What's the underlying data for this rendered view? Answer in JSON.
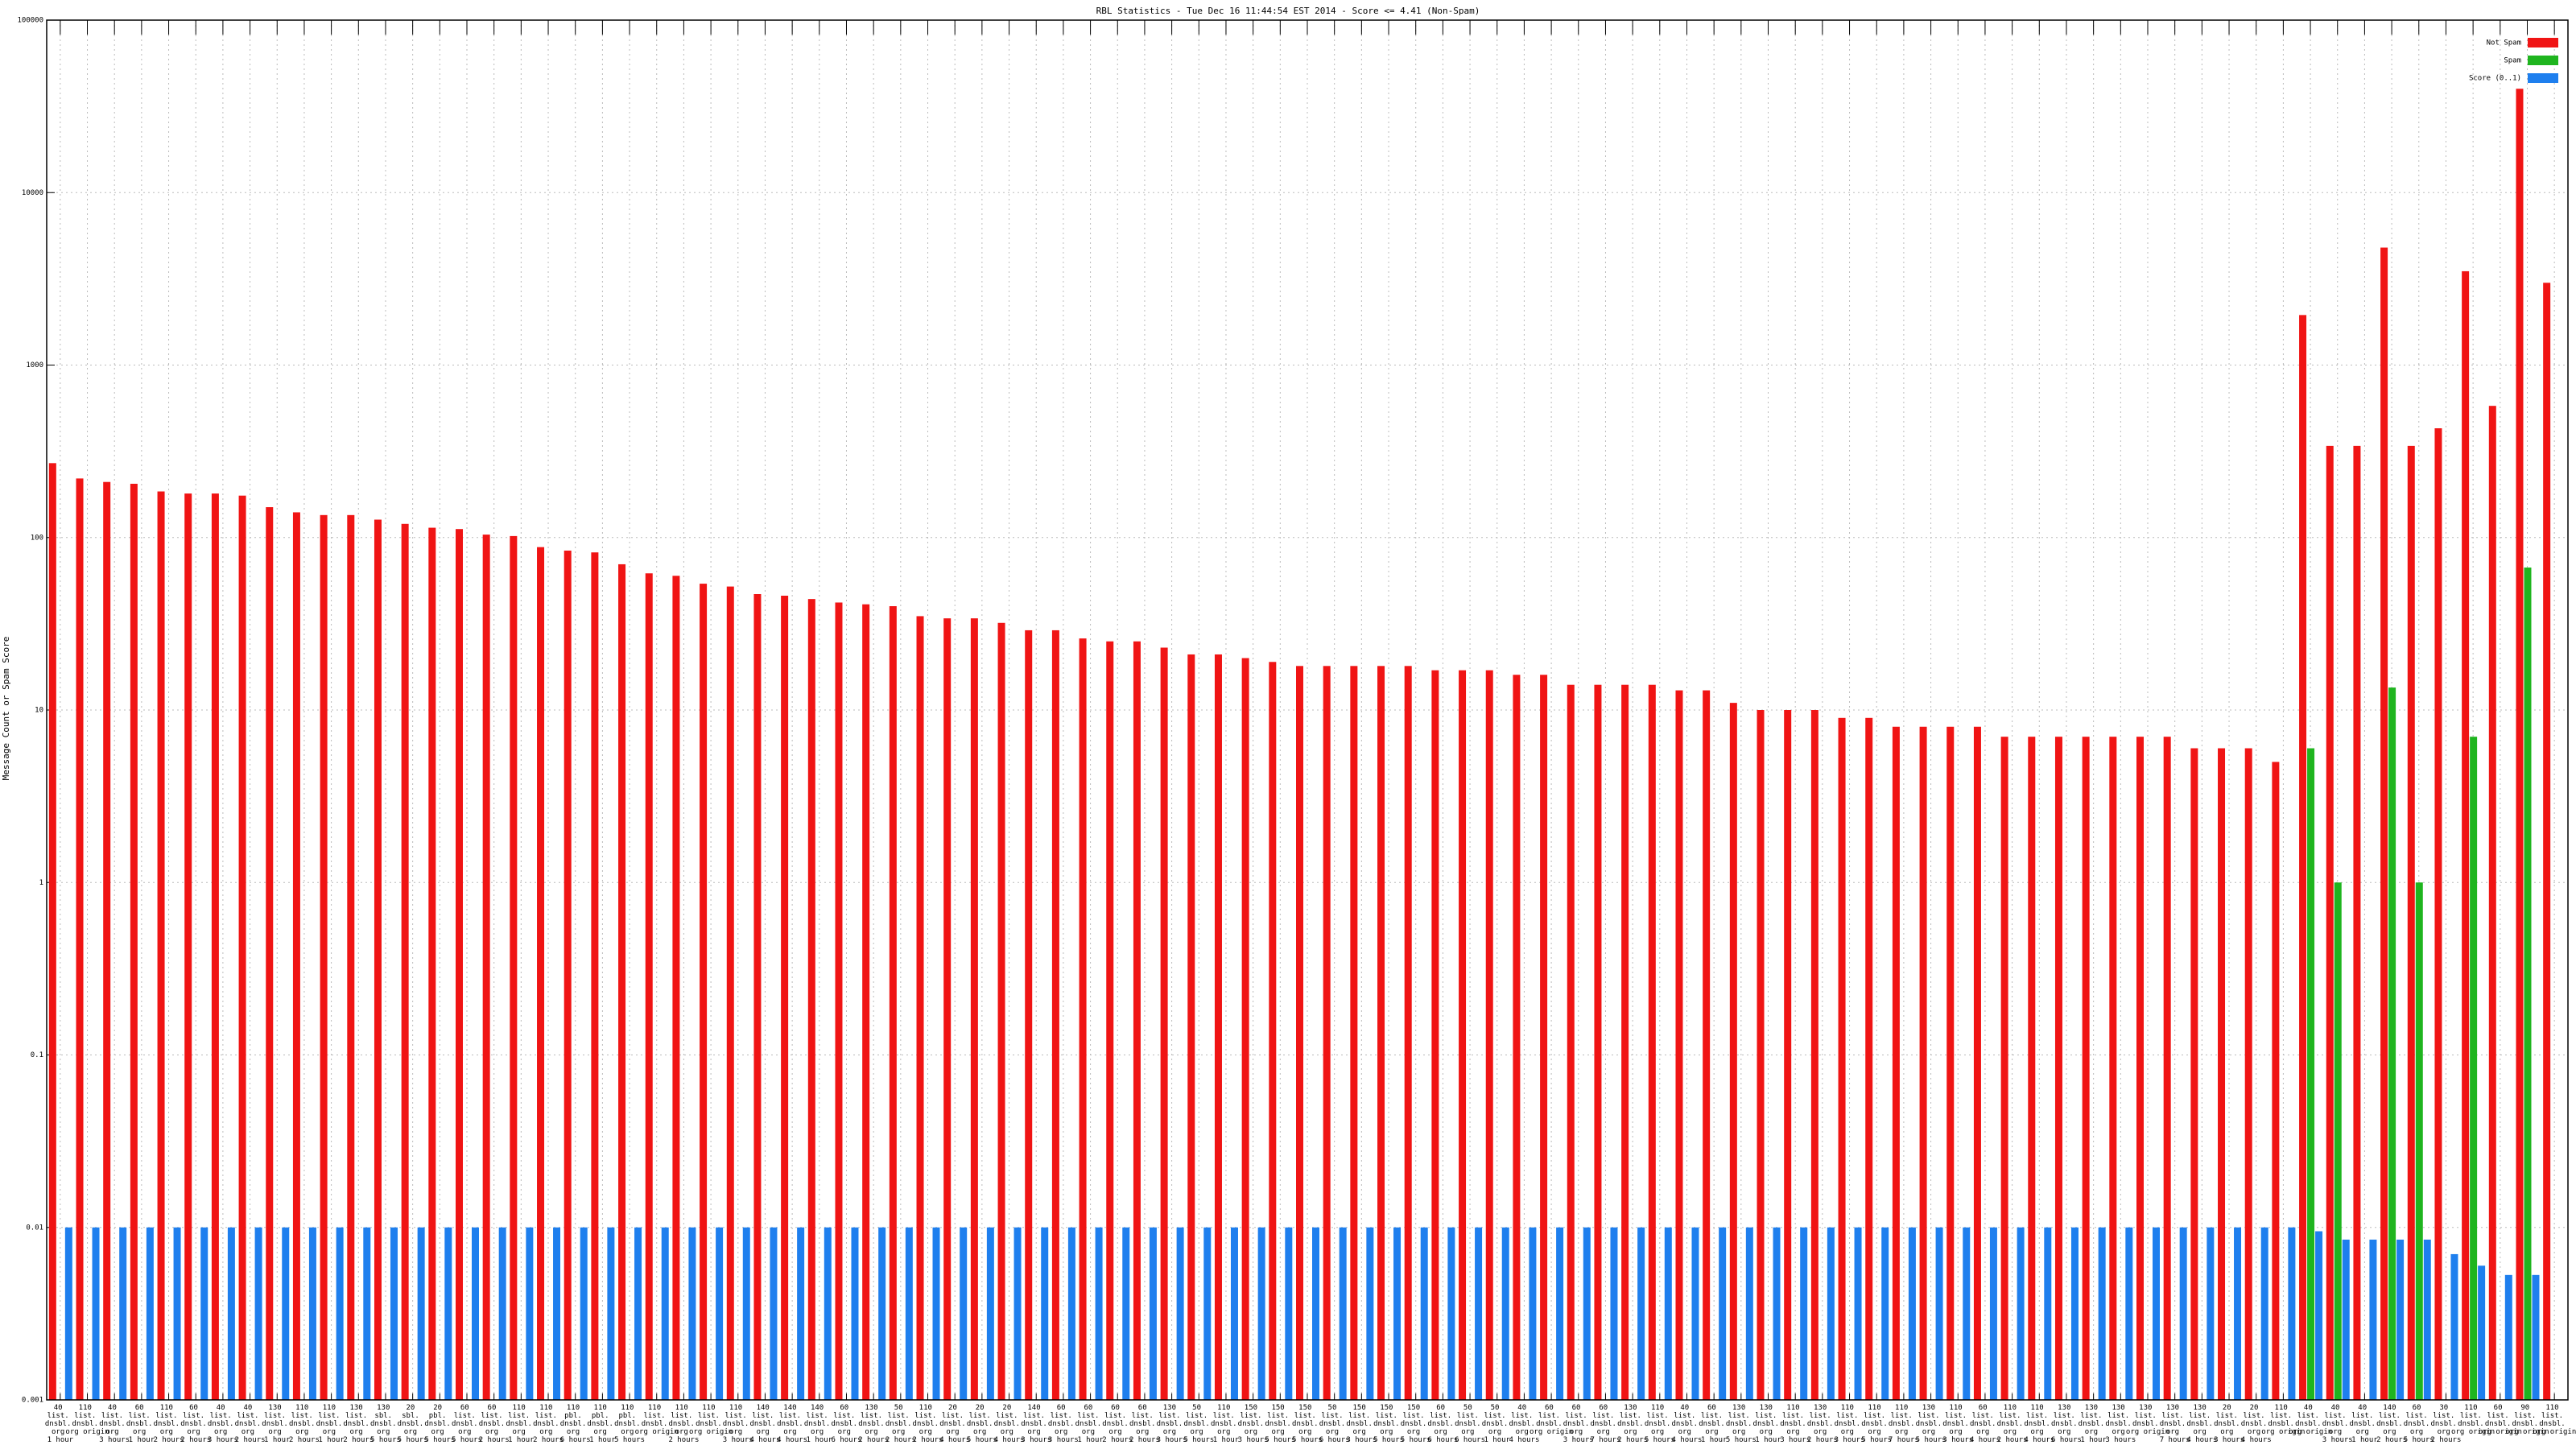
{
  "chart_data": {
    "type": "bar",
    "title": "RBL Statistics - Tue Dec 16 11:44:54 EST 2014 - Score <= 4.41 (Non-Spam)",
    "y_label": "Message Count or Spam Score",
    "log_scale": true,
    "grid": true,
    "legend": "top-right",
    "ylim": [
      0.001,
      100000
    ],
    "yticks": [
      0.001,
      0.01,
      0.1,
      1,
      10,
      100,
      1000,
      10000,
      100000
    ],
    "categories": [
      "40 list. dnsbl. org 1 hour",
      "110 list. dnsbl. org origin",
      "40 list. dnsbl. org 3 hours",
      "60 list. dnsbl. org 1 hour",
      "110 list. dnsbl. org 2 hours",
      "60 list. dnsbl. org 2 hours",
      "40 list. dnsbl. org 3 hours",
      "40 list. dnsbl. org 2 hours",
      "130 list. dnsbl. org 1 hour",
      "110 list. dnsbl. org 2 hours",
      "110 list. dnsbl. org 1 hour",
      "130 list. dnsbl. org 2 hours",
      "130 sbl. dnsbl. org 5 hours",
      "20 sbl. dnsbl. org 5 hours",
      "20 pbl. dnsbl. org 5 hours",
      "60 list. dnsbl. org 5 hours",
      "60 list. dnsbl. org 2 hours",
      "110 list. dnsbl. org 1 hour",
      "110 list. dnsbl. org 2 hours",
      "110 pbl. dnsbl. org 6 hours",
      "110 pbl. dnsbl. org 1 hour",
      "110 pbl. dnsbl. org 5 hours",
      "110 list. dnsbl. org origin",
      "110 list. dnsbl. org 2 hours",
      "110 list. dnsbl. org origin",
      "110 list. dnsbl. org 3 hours",
      "140 list. dnsbl. org 4 hours",
      "140 list. dnsbl. org 4 hours",
      "140 list. dnsbl. org 1 hour",
      "60 list. dnsbl. org 6 hours",
      "130 list. dnsbl. org 2 hours",
      "50 list. dnsbl. org 2 hours",
      "110 list. dnsbl. org 2 hours",
      "20 list. dnsbl. org 4 hours",
      "20 list. dnsbl. org 5 hours",
      "20 list. dnsbl. org 4 hours",
      "140 list. dnsbl. org 3 hours",
      "60 list. dnsbl. org 3 hours",
      "60 list. dnsbl. org 1 hour",
      "60 list. dnsbl. org 2 hours",
      "60 list. dnsbl. org 2 hours",
      "130 list. dnsbl. org 3 hours",
      "50 list. dnsbl. org 5 hours",
      "110 list. dnsbl. org 1 hour",
      "150 list. dnsbl. org 3 hours",
      "150 list. dnsbl. org 5 hours",
      "150 list. dnsbl. org 5 hours",
      "50 list. dnsbl. org 6 hours",
      "150 list. dnsbl. org 3 hours",
      "150 list. dnsbl. org 5 hours",
      "150 list. dnsbl. org 5 hours",
      "60 list. dnsbl. org 6 hours",
      "50 list. dnsbl. org 6 hours",
      "50 list. dnsbl. org 1 hour",
      "40 list. dnsbl. org 4 hours",
      "60 list. dnsbl. org origin",
      "60 list. dnsbl. org 3 hours",
      "60 list. dnsbl. org 7 hours",
      "130 list. dnsbl. org 2 hours",
      "110 list. dnsbl. org 5 hours",
      "40 list. dnsbl. org 4 hours",
      "60 list. dnsbl. org 1 hour",
      "130 list. dnsbl. org 5 hours",
      "130 list. dnsbl. org 1 hour",
      "110 list. dnsbl. org 3 hours",
      "130 list. dnsbl. org 2 hours",
      "110 list. dnsbl. org 3 hours",
      "110 list. dnsbl. org 5 hours",
      "110 list. dnsbl. org 7 hours",
      "130 list. dnsbl. org 5 hours",
      "110 list. dnsbl. org 3 hours",
      "60 list. dnsbl. org 4 hours",
      "110 list. dnsbl. org 2 hours",
      "110 list. dnsbl. org 4 hours",
      "130 list. dnsbl. org 6 hours",
      "130 list. dnsbl. org 1 hour",
      "130 list. dnsbl. org 3 hours",
      "130 list. dnsbl. org origin",
      "130 list. dnsbl. org 7 hours",
      "130 list. dnsbl. org 4 hours",
      "20 list. dnsbl. org 3 hours",
      "20 list. dnsbl. org 4 hours",
      "110 list. dnsbl. org origin",
      "40 list. dnsbl. org origin",
      "40 list. dnsbl. org 3 hours",
      "40 list. dnsbl. org 1 hour",
      "140 list. dnsbl. org 2 hours",
      "60 list. dnsbl. org 5 hours",
      "30 list. dnsbl. org 2 hours",
      "110 list. dnsbl. org origin",
      "60 list. dnsbl. org origin",
      "90 list. dnsbl. org origin",
      "110 list. dnsbl. org origin"
    ],
    "series": [
      {
        "name": "Not Spam",
        "color": "#f01414",
        "values": [
          270,
          220,
          210,
          205,
          185,
          180,
          180,
          175,
          150,
          140,
          135,
          135,
          127,
          120,
          114,
          112,
          104,
          102,
          88,
          84,
          82,
          70,
          62,
          60,
          54,
          52,
          47,
          46,
          44,
          42,
          41,
          40,
          35,
          34,
          34,
          32,
          29,
          29,
          26,
          25,
          25,
          23,
          21,
          21,
          20,
          19,
          18,
          18,
          18,
          18,
          18,
          17,
          17,
          17,
          16,
          16,
          14,
          14,
          14,
          14,
          13,
          13,
          11,
          10,
          10,
          10,
          9,
          9,
          8,
          8,
          8,
          8,
          7,
          7,
          7,
          7,
          7,
          7,
          7,
          6,
          6,
          6,
          5,
          1950,
          340,
          340,
          4800,
          340,
          430,
          3500,
          580,
          40000,
          3000
        ]
      },
      {
        "name": "Spam",
        "color": "#1fb51f",
        "values": [
          null,
          null,
          null,
          null,
          null,
          null,
          null,
          null,
          null,
          null,
          null,
          null,
          null,
          null,
          null,
          null,
          null,
          null,
          null,
          null,
          null,
          null,
          null,
          null,
          null,
          null,
          null,
          null,
          null,
          null,
          null,
          null,
          null,
          null,
          null,
          null,
          null,
          null,
          null,
          null,
          null,
          null,
          null,
          null,
          null,
          null,
          null,
          null,
          null,
          null,
          null,
          null,
          null,
          null,
          null,
          null,
          null,
          null,
          null,
          null,
          null,
          null,
          null,
          null,
          null,
          null,
          null,
          null,
          null,
          null,
          null,
          null,
          null,
          null,
          null,
          null,
          null,
          null,
          null,
          null,
          null,
          null,
          null,
          6,
          1,
          null,
          13.5,
          1,
          null,
          7,
          null,
          67,
          null
        ]
      },
      {
        "name": "Score (0..1)",
        "color": "#1e7fee",
        "values": [
          0.01,
          0.01,
          0.01,
          0.01,
          0.01,
          0.01,
          0.01,
          0.01,
          0.01,
          0.01,
          0.01,
          0.01,
          0.01,
          0.01,
          0.01,
          0.01,
          0.01,
          0.01,
          0.01,
          0.01,
          0.01,
          0.01,
          0.01,
          0.01,
          0.01,
          0.01,
          0.01,
          0.01,
          0.01,
          0.01,
          0.01,
          0.01,
          0.01,
          0.01,
          0.01,
          0.01,
          0.01,
          0.01,
          0.01,
          0.01,
          0.01,
          0.01,
          0.01,
          0.01,
          0.01,
          0.01,
          0.01,
          0.01,
          0.01,
          0.01,
          0.01,
          0.01,
          0.01,
          0.01,
          0.01,
          0.01,
          0.01,
          0.01,
          0.01,
          0.01,
          0.01,
          0.01,
          0.01,
          0.01,
          0.01,
          0.01,
          0.01,
          0.01,
          0.01,
          0.01,
          0.01,
          0.01,
          0.01,
          0.01,
          0.01,
          0.01,
          0.01,
          0.01,
          0.01,
          0.01,
          0.01,
          0.01,
          0.01,
          0.0095,
          0.0085,
          0.0085,
          0.0085,
          0.0085,
          0.007,
          0.006,
          0.0053,
          0.0053,
          null
        ]
      }
    ]
  }
}
